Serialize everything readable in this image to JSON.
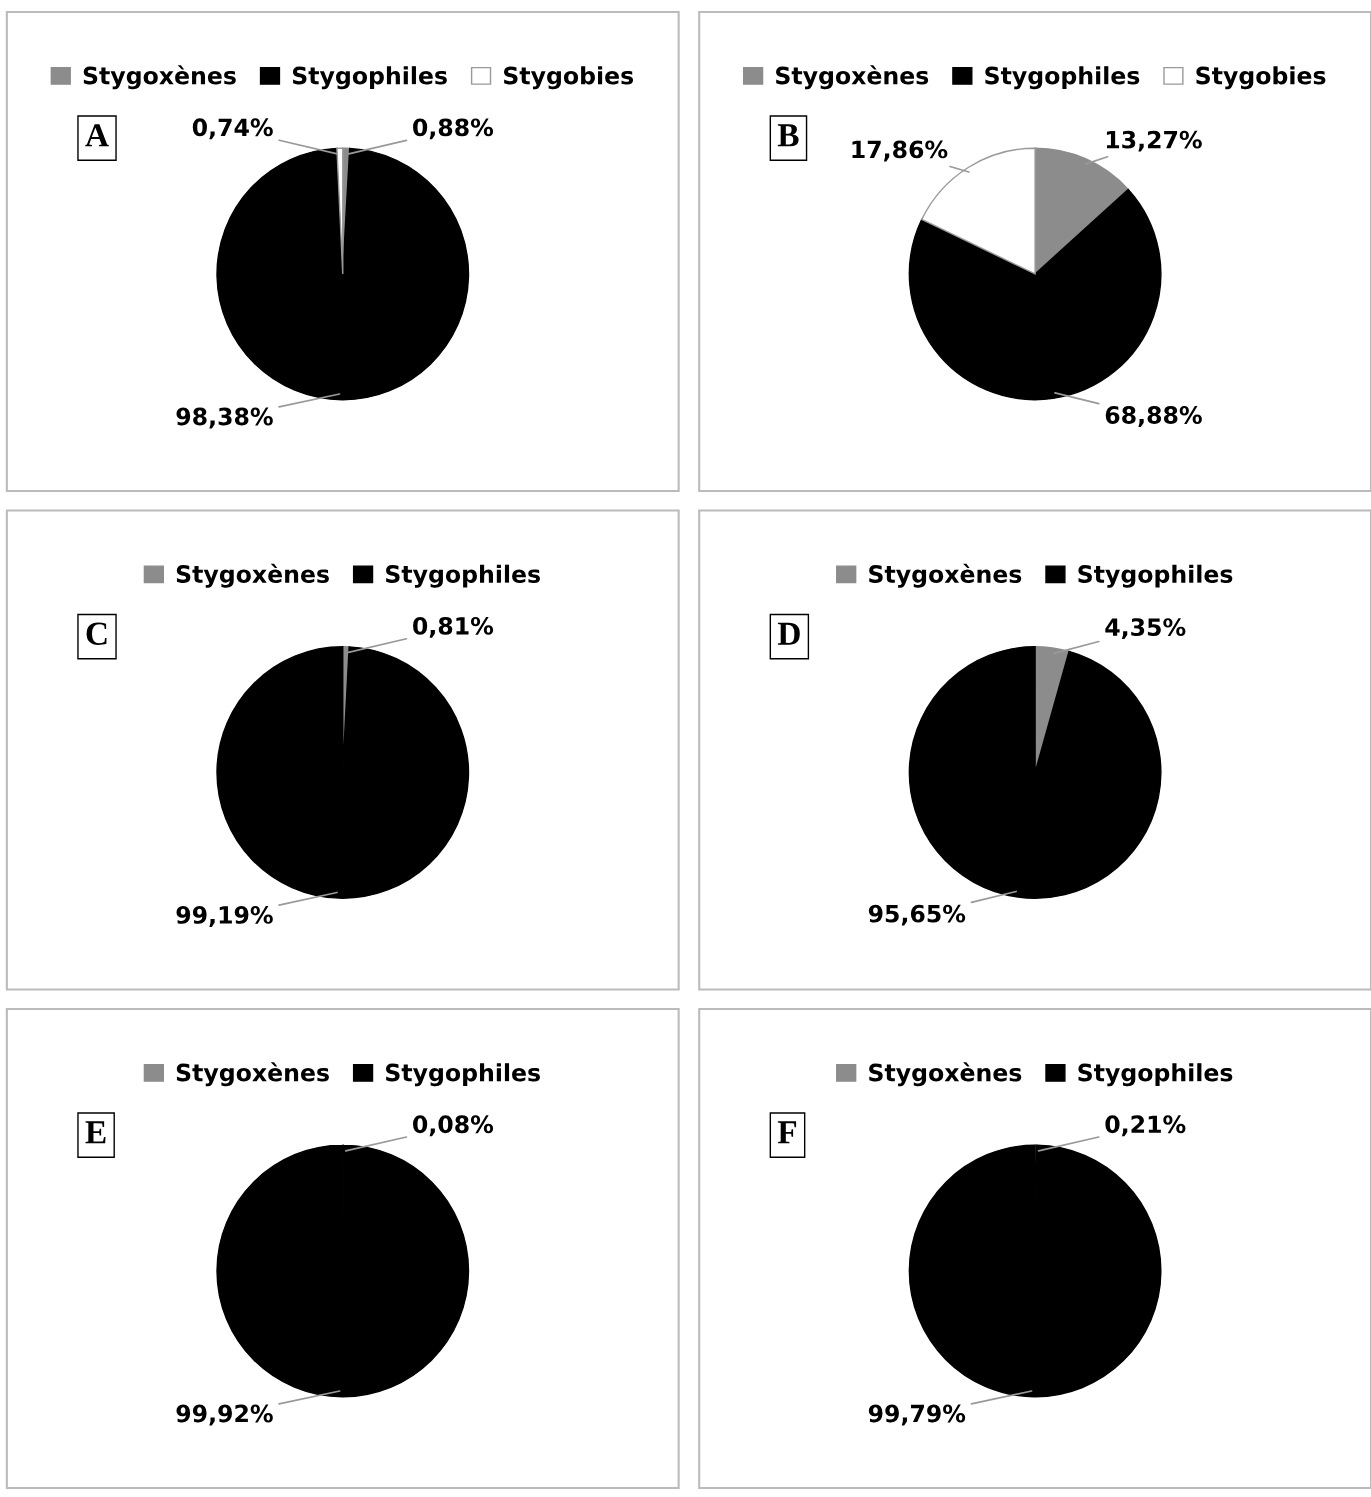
{
  "chart_data": [
    {
      "type": "pie",
      "title": "A",
      "categories": [
        "Stygoxènes",
        "Stygophiles",
        "Stygobies"
      ],
      "values": [
        0.88,
        98.38,
        0.74
      ],
      "colors": [
        "#8c8c8c",
        "#000000",
        "#ffffff"
      ],
      "value_labels": [
        "0,88%",
        "98,38%",
        "0,74%"
      ],
      "legend": "top"
    },
    {
      "type": "pie",
      "title": "B",
      "categories": [
        "Stygoxènes",
        "Stygophiles",
        "Stygobies"
      ],
      "values": [
        13.27,
        68.88,
        17.86
      ],
      "colors": [
        "#8c8c8c",
        "#000000",
        "#ffffff"
      ],
      "value_labels": [
        "13,27%",
        "68,88%",
        "17,86%"
      ],
      "legend": "top"
    },
    {
      "type": "pie",
      "title": "C",
      "categories": [
        "Stygoxènes",
        "Stygophiles"
      ],
      "values": [
        0.81,
        99.19
      ],
      "colors": [
        "#8c8c8c",
        "#000000"
      ],
      "value_labels": [
        "0,81%",
        "99,19%"
      ],
      "legend": "top"
    },
    {
      "type": "pie",
      "title": "D",
      "categories": [
        "Stygoxènes",
        "Stygophiles"
      ],
      "values": [
        4.35,
        95.65
      ],
      "colors": [
        "#8c8c8c",
        "#000000"
      ],
      "value_labels": [
        "4,35%",
        "95,65%"
      ],
      "legend": "top"
    },
    {
      "type": "pie",
      "title": "E",
      "categories": [
        "Stygoxènes",
        "Stygophiles"
      ],
      "values": [
        0.08,
        99.92
      ],
      "colors": [
        "#8c8c8c",
        "#000000"
      ],
      "value_labels": [
        "0,08%",
        "99,92%"
      ],
      "legend": "top"
    },
    {
      "type": "pie",
      "title": "F",
      "categories": [
        "Stygoxènes",
        "Stygophiles"
      ],
      "values": [
        0.21,
        99.79
      ],
      "colors": [
        "#8c8c8c",
        "#000000"
      ],
      "value_labels": [
        "0,21%",
        "99,79%"
      ],
      "legend": "top"
    }
  ]
}
